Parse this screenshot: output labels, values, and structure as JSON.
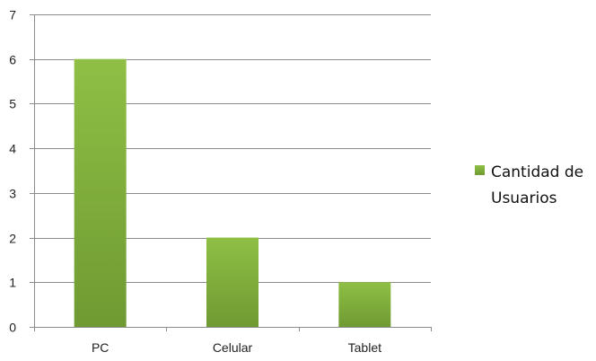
{
  "chart_data": {
    "type": "bar",
    "categories": [
      "PC",
      "Celular",
      "Tablet"
    ],
    "series": [
      {
        "name": "Cantidad de Usuarios",
        "values": [
          6,
          2,
          1
        ],
        "color": "#7fa73a"
      }
    ],
    "y_ticks": [
      "0",
      "1",
      "2",
      "3",
      "4",
      "5",
      "6",
      "7"
    ],
    "ylim": [
      0,
      7
    ],
    "grid": true,
    "legend": {
      "position": "right",
      "lines": [
        "Cantidad de",
        "Usuarios"
      ]
    },
    "title": "",
    "xlabel": "",
    "ylabel": ""
  }
}
